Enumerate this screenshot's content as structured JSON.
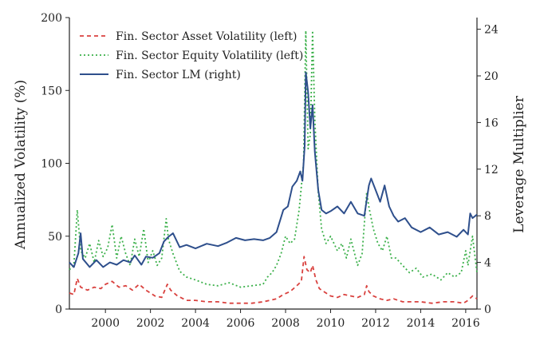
{
  "chart_data": {
    "type": "line",
    "title": "",
    "xlabel": "",
    "ylabel_left": "Annualized Volatility (%)",
    "ylabel_right": "Leverage Multiplier",
    "xlim": [
      1998.4,
      2016.5
    ],
    "ylim_left": [
      0,
      200
    ],
    "ylim_right": [
      0,
      25
    ],
    "x_ticks": [
      2000,
      2002,
      2004,
      2006,
      2008,
      2010,
      2012,
      2014,
      2016
    ],
    "y_ticks_left": [
      0,
      50,
      100,
      150,
      200
    ],
    "y_ticks_right": [
      0,
      4,
      8,
      12,
      16,
      20,
      24
    ],
    "grid": false,
    "legend_position": "top-left",
    "series": [
      {
        "name": "Fin. Sector Asset Volatility (left)",
        "axis": "left",
        "color": "#d9413e",
        "style": "dashed",
        "x": [
          1998.4,
          1998.6,
          1998.75,
          1998.9,
          1999.2,
          1999.5,
          1999.8,
          2000.0,
          2000.3,
          2000.6,
          2000.9,
          2001.2,
          2001.5,
          2001.8,
          2002.2,
          2002.5,
          2002.75,
          2002.9,
          2003.2,
          2003.6,
          2004.0,
          2004.5,
          2005.0,
          2005.5,
          2006.0,
          2006.5,
          2007.0,
          2007.3,
          2007.6,
          2007.9,
          2008.2,
          2008.5,
          2008.7,
          2008.82,
          2008.95,
          2009.1,
          2009.2,
          2009.35,
          2009.5,
          2009.7,
          2010.0,
          2010.3,
          2010.6,
          2010.9,
          2011.2,
          2011.5,
          2011.6,
          2011.7,
          2011.9,
          2012.2,
          2012.5,
          2012.8,
          2013.2,
          2013.6,
          2014.0,
          2014.5,
          2015.0,
          2015.5,
          2015.9,
          2016.1,
          2016.3,
          2016.5
        ],
        "values": [
          11,
          10,
          21,
          15,
          13,
          15,
          14,
          17,
          19,
          15,
          16,
          13,
          17,
          13,
          9,
          8,
          17,
          13,
          9,
          6,
          6,
          5,
          5,
          4,
          4,
          4,
          5,
          6,
          7,
          10,
          12,
          16,
          19,
          36,
          27,
          25,
          30,
          20,
          14,
          12,
          9,
          8,
          10,
          9,
          8,
          10,
          16,
          12,
          9,
          7,
          6,
          7,
          5,
          5,
          5,
          4,
          5,
          5,
          4,
          6,
          9,
          7
        ]
      },
      {
        "name": "Fin. Sector Equity Volatility (left)",
        "axis": "left",
        "color": "#3bb04a",
        "style": "dotted",
        "x": [
          1998.4,
          1998.6,
          1998.75,
          1998.9,
          1999.1,
          1999.3,
          1999.5,
          1999.7,
          1999.9,
          2000.1,
          2000.3,
          2000.5,
          2000.7,
          2000.9,
          2001.1,
          2001.3,
          2001.5,
          2001.7,
          2001.9,
          2002.1,
          2002.3,
          2002.5,
          2002.7,
          2002.8,
          2003.0,
          2003.3,
          2003.6,
          2004.0,
          2004.5,
          2005.0,
          2005.5,
          2006.0,
          2006.5,
          2007.0,
          2007.2,
          2007.4,
          2007.6,
          2007.8,
          2008.0,
          2008.2,
          2008.4,
          2008.6,
          2008.8,
          2008.9,
          2009.0,
          2009.1,
          2009.2,
          2009.3,
          2009.45,
          2009.6,
          2009.8,
          2010.0,
          2010.3,
          2010.5,
          2010.7,
          2010.9,
          2011.2,
          2011.4,
          2011.6,
          2011.7,
          2011.9,
          2012.1,
          2012.3,
          2012.5,
          2012.7,
          2012.9,
          2013.2,
          2013.5,
          2013.8,
          2014.1,
          2014.5,
          2014.9,
          2015.2,
          2015.5,
          2015.8,
          2016.0,
          2016.1,
          2016.3,
          2016.5
        ],
        "values": [
          27,
          30,
          68,
          40,
          35,
          45,
          32,
          47,
          36,
          42,
          58,
          35,
          50,
          38,
          30,
          48,
          36,
          55,
          32,
          40,
          30,
          35,
          62,
          48,
          38,
          26,
          22,
          20,
          17,
          16,
          18,
          15,
          16,
          17,
          22,
          25,
          30,
          38,
          50,
          45,
          48,
          68,
          100,
          191,
          110,
          120,
          191,
          130,
          80,
          55,
          45,
          50,
          40,
          45,
          35,
          48,
          30,
          38,
          80,
          70,
          55,
          45,
          40,
          50,
          35,
          35,
          30,
          25,
          28,
          22,
          24,
          20,
          25,
          22,
          25,
          40,
          30,
          50,
          25
        ]
      },
      {
        "name": "Fin. Sector LM (right)",
        "axis": "right",
        "color": "#2e4f8c",
        "style": "solid",
        "x": [
          1998.4,
          1998.6,
          1998.8,
          1998.9,
          1999.0,
          1999.3,
          1999.6,
          1999.9,
          2000.2,
          2000.5,
          2000.8,
          2001.1,
          2001.3,
          2001.6,
          2001.8,
          2002.1,
          2002.4,
          2002.6,
          2002.8,
          2003.0,
          2003.3,
          2003.6,
          2004.0,
          2004.5,
          2005.0,
          2005.4,
          2005.8,
          2006.2,
          2006.6,
          2007.0,
          2007.3,
          2007.6,
          2007.9,
          2008.1,
          2008.3,
          2008.5,
          2008.65,
          2008.75,
          2008.85,
          2008.9,
          2009.0,
          2009.1,
          2009.2,
          2009.3,
          2009.45,
          2009.6,
          2009.8,
          2010.0,
          2010.3,
          2010.6,
          2010.9,
          2011.2,
          2011.5,
          2011.7,
          2011.8,
          2012.0,
          2012.2,
          2012.4,
          2012.6,
          2012.8,
          2013.0,
          2013.3,
          2013.6,
          2014.0,
          2014.4,
          2014.8,
          2015.2,
          2015.6,
          2015.9,
          2016.1,
          2016.2,
          2016.3,
          2016.5
        ],
        "values": [
          4,
          3.6,
          4.8,
          6.5,
          4.3,
          3.6,
          4.2,
          3.6,
          4,
          3.8,
          4.2,
          4,
          4.6,
          3.8,
          4.5,
          4.4,
          4.8,
          5.8,
          6.2,
          6.5,
          5.3,
          5.5,
          5.2,
          5.6,
          5.4,
          5.7,
          6.1,
          5.9,
          6,
          5.9,
          6.1,
          6.6,
          8.5,
          8.8,
          10.5,
          11,
          11.8,
          11,
          14,
          20.3,
          18.6,
          15.5,
          17.5,
          13.5,
          10.2,
          8.5,
          8.2,
          8.4,
          8.8,
          8.2,
          9.2,
          8.2,
          8,
          10.6,
          11.2,
          10.2,
          9.2,
          10.6,
          8.8,
          8,
          7.5,
          7.8,
          7,
          6.6,
          7,
          6.4,
          6.6,
          6.2,
          6.8,
          6.4,
          8.2,
          7.8,
          8.1
        ]
      }
    ]
  }
}
